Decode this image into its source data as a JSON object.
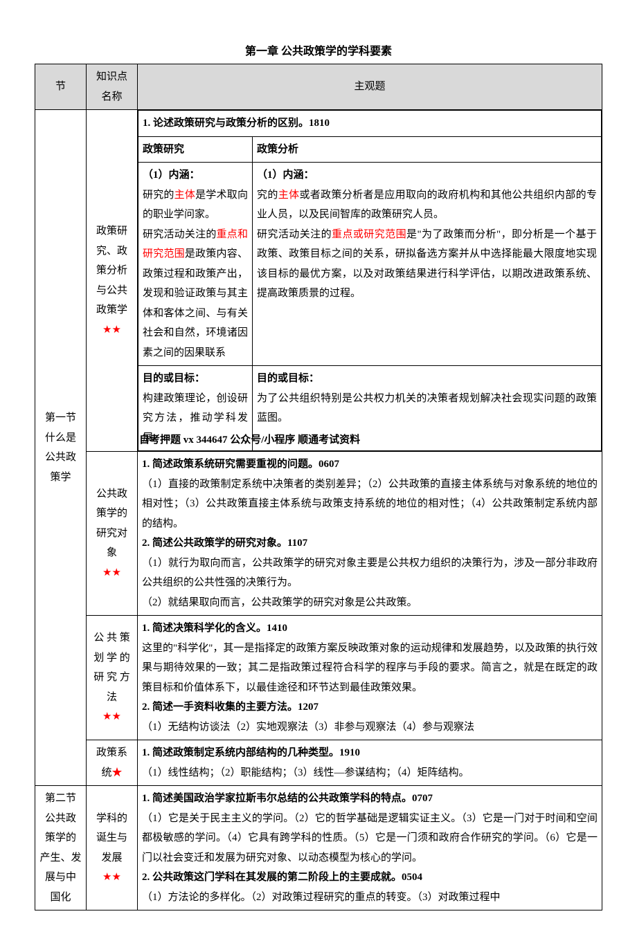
{
  "page_title": "第一章 公共政策学的学科要素",
  "headers": {
    "col1": "节",
    "col2": "知识点\n名称",
    "col3": "主观题"
  },
  "section1": {
    "label": "第一节\n什么是\n公共政\n策学",
    "points": {
      "p1": {
        "name": "政策研\n究、政\n策分析\n与公共\n政策学",
        "stars": "★★",
        "q1": "1. 论述政策研究与政策分析的区别。1810",
        "sub_h1": "政策研究",
        "sub_h2": "政策分析",
        "row1_left_label": "（1）内涵：",
        "row1_left": "研究的",
        "row1_left_red": "主体",
        "row1_left_2": "是学术取向的职业学问家。",
        "row1_left_3": "研究活动关注的",
        "row1_left_red2": "重点和研究范围",
        "row1_left_4": "是政策内容、政策过程和政策产出，发现和验证政策与其主体和客体之间、与有关社会和自然，环境诸因素之间的因果联系",
        "row1_right_label": "（1）内涵：",
        "row1_right": "究的",
        "row1_right_red": "主体",
        "row1_right_2": "或者政策分析者是应用取向的政府机构和其他公共组织内部的专业人员，以及民间智库的政策研究人员。",
        "row1_right_3": "研究活动关注的",
        "row1_right_red2": "重点或研究范围",
        "row1_right_4": "是\"为了政策而分析\"，即分析是一个基于政策、政策目标之间的关系，研拟备选方案并从中选择能最大限度地实现该目标的最优方案，以及对政策结果进行科学评估，以期改进政策系统、提高政策质景的过程。",
        "row2_left_label": "目的或目标：",
        "row2_left": "构建政策理论，创设研究方法，推动学科发展。",
        "row2_right_label": "目的或目标：",
        "row2_right": "为了公共组织特别是公共权力机关的决策者规划解决社会现实问题的政策蓝图。"
      },
      "p2": {
        "name": "公共政\n策学的\n研究对\n象",
        "stars": "★★",
        "content": "1. 简述政策系统研究需要重视的问题。0607\n（1）直接的政策制定系统中决策者的类别差异；（2）公共政策的直接主体系统与对象系统的地位的相对性；（3）公共政策直接主体系统与政策支持系统的地位的相对性；（4）公共政策制定系统内部的结构。\n2. 简述公共政策学的研究对象。1107\n（1）就行为取向而言，公共政策学的研究对象主要是公共权力组织的决策行为，涉及一部分非政府公共组织的公共性强的决策行为。\n（2）就结果取向而言，公共政策学的研究对象是公共政策。",
        "bold_lines": [
          "1. 简述政策系统研究需要重视的问题。0607",
          "2. 简述公共政策学的研究对象。1107"
        ]
      },
      "p3": {
        "name": "公 共 策\n划 学 的\n研 究 方\n法",
        "stars": "★★",
        "content": "1. 简述决策科学化的含义。1410\n这里的\"科学化\"，其一是指择定的政策方案反映政策对象的运动规律和发展趋势，以及政策的执行效果与期待效果的一致；其二是指政策过程符合科学的程序与手段的要求。简言之，就是在既定的政策目标和价值体系下，以最佳途径和环节达到最佳政策效果。\n2. 简述一手资料收集的主要方法。1207\n（1）无结构访谈法（2）实地观察法（3）非参与观察法（4）参与观察法",
        "bold_lines": [
          "1. 简述决策科学化的含义。1410",
          "2. 简述一手资料收集的主要方法。1207"
        ]
      },
      "p4": {
        "name": "政策系",
        "name2": "统",
        "stars": "★",
        "content": "1. 简述政策制定系统内部结构的几种类型。1910\n（1）线性结构；（2）职能结构；（3）线性—参谋结构；（4）矩阵结构。",
        "bold_lines": [
          "1. 简述政策制定系统内部结构的几种类型。1910"
        ]
      }
    }
  },
  "section2": {
    "label": "第二节\n公共政\n策学的\n产生、发\n展与中\n国化",
    "point": {
      "name": "学科的\n诞生与\n发展",
      "stars": "★★",
      "content": "1. 简述美国政治学家拉斯韦尔总结的公共政策学科的特点。0707\n（1）它是关于民主主义的学问。（2）它的哲学基础是逻辑实证主义。（3）它是一门对于时间和空间都极敏感的学问。（4）它具有跨学科的性质。（5）它是一门须和政府合作研究的学问。（6）它是一门以社会变迁和发展为研究对象、以动态模型为核心的学问。\n2. 公共政策这门学科在其发展的第二阶段上的主要成就。0504\n（1）方法论的多样化。（2）对政策过程研究的重点的转变。（3）对政策过程中",
      "bold_lines": [
        "1. 简述美国政治学家拉斯韦尔总结的公共政策学科的特点。0707",
        "2. 公共政策这门学科在其发展的第二阶段上的主要成就。0504"
      ]
    }
  },
  "watermark": "自考押题 vx 344647 公众号/小程序 顺通考试资料"
}
